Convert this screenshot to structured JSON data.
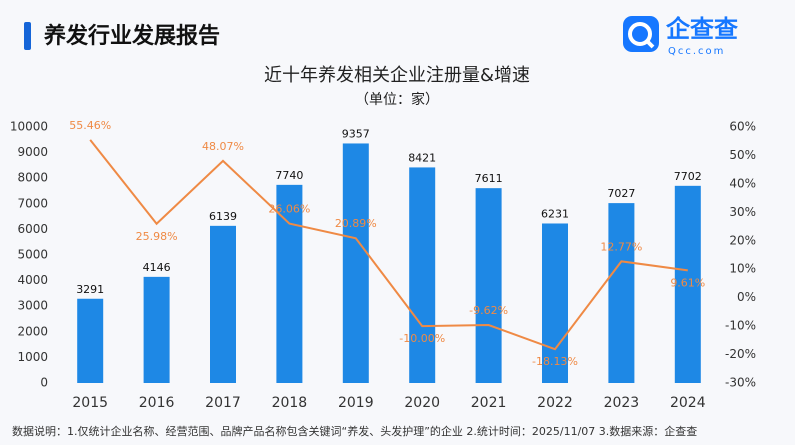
{
  "header": {
    "title": "养发行业发展报告",
    "logo_text": "企查查",
    "logo_sub": "Qcc.com"
  },
  "footnote": "数据说明：1.仅统计企业名称、经营范围、品牌产品名称包含关键词“养发、头发护理”的企业 2.统计时间：2025/11/07 3.数据来源：企查查",
  "chart_data": {
    "type": "bar",
    "title": "近十年养发相关企业注册量&增速",
    "subtitle": "（单位：家）",
    "categories": [
      "2015",
      "2016",
      "2017",
      "2018",
      "2019",
      "2020",
      "2021",
      "2022",
      "2023",
      "2024"
    ],
    "series": [
      {
        "type": "bar",
        "color": "#1e88e5",
        "values": [
          3291,
          4146,
          6139,
          7740,
          9357,
          8421,
          7611,
          6231,
          7027,
          7702
        ]
      },
      {
        "type": "line",
        "axis": "y2",
        "color": "#ef8a45",
        "values": [
          55.46,
          25.98,
          48.07,
          26.06,
          20.89,
          -10.0,
          -9.62,
          -18.13,
          12.77,
          9.61
        ],
        "value_labels": [
          "55.46%",
          "25.98%",
          "48.07%",
          "26.06%",
          "20.89%",
          "-10.00%",
          "-9.62%",
          "-18.13%",
          "12.77%",
          "9.61%"
        ]
      }
    ],
    "ylim": [
      0,
      10000
    ],
    "yticks": [
      0,
      1000,
      2000,
      3000,
      4000,
      5000,
      6000,
      7000,
      8000,
      9000,
      10000
    ],
    "y2lim": [
      -30,
      60
    ],
    "y2ticks": [
      {
        "value": -30,
        "label": "-30%"
      },
      {
        "value": -20,
        "label": "-20%"
      },
      {
        "value": -10,
        "label": "-10%"
      },
      {
        "value": 0,
        "label": "0%"
      },
      {
        "value": 10,
        "label": "10%"
      },
      {
        "value": 20,
        "label": "20%"
      },
      {
        "value": 30,
        "label": "30%"
      },
      {
        "value": 40,
        "label": "40%"
      },
      {
        "value": 50,
        "label": "50%"
      },
      {
        "value": 60,
        "label": "60%"
      }
    ],
    "grid": false
  }
}
